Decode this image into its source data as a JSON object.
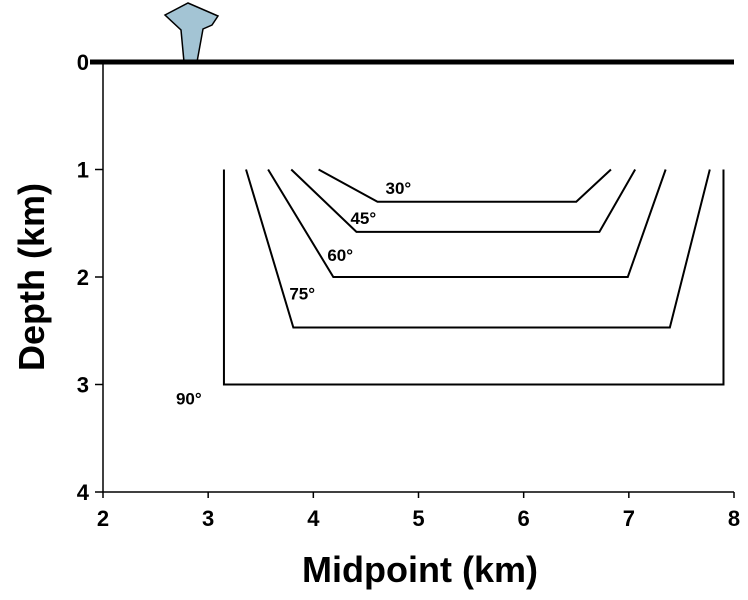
{
  "chart_data": {
    "type": "line",
    "x_label": "Midpoint (km)",
    "y_label": "Depth (km)",
    "xlim": [
      2,
      8
    ],
    "xticks": [
      2,
      3,
      4,
      5,
      6,
      7,
      8
    ],
    "ylim": [
      4,
      0
    ],
    "yticks": [
      0,
      1,
      2,
      3,
      4
    ],
    "color": "#000000",
    "series": [
      {
        "name": "30°",
        "x": [
          4.05,
          4.61,
          6.5,
          6.83
        ],
        "values": [
          1,
          1.3,
          1.3,
          1
        ]
      },
      {
        "name": "45°",
        "x": [
          3.79,
          4.41,
          6.72,
          7.06
        ],
        "values": [
          1,
          1.58,
          1.58,
          1
        ]
      },
      {
        "name": "60°",
        "x": [
          3.57,
          4.19,
          6.99,
          7.35
        ],
        "values": [
          1,
          2,
          2,
          1
        ]
      },
      {
        "name": "75°",
        "x": [
          3.36,
          3.81,
          7.39,
          7.77
        ],
        "values": [
          1,
          2.47,
          2.47,
          1
        ]
      },
      {
        "name": "90°",
        "x": [
          3.15,
          3.15,
          7.9,
          7.9
        ],
        "values": [
          1,
          3,
          3,
          1
        ]
      }
    ]
  }
}
